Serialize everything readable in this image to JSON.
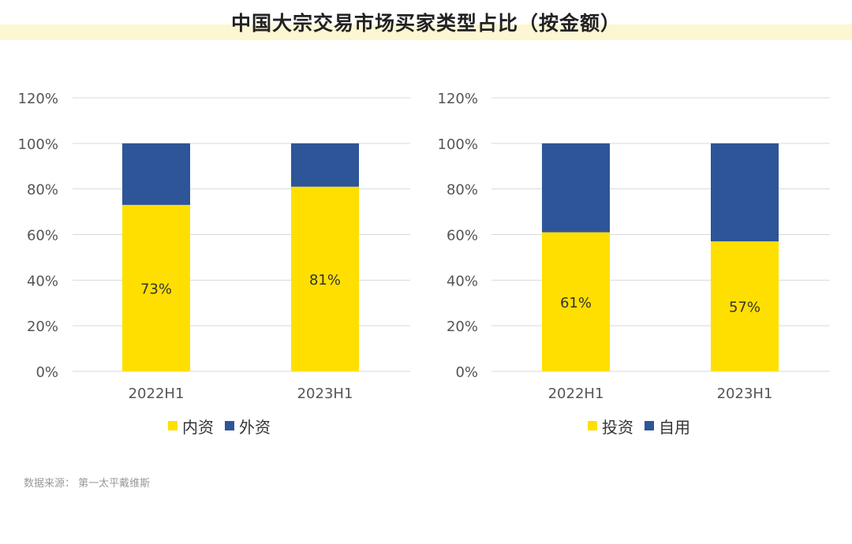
{
  "title": "中国大宗交易市场买家类型占比（按金额）",
  "source": "数据来源：  第一太平戴维斯",
  "colors": {
    "yellow": "#ffdf00",
    "blue": "#2e5597",
    "grid": "#d9d9d9",
    "axis_text": "#555555",
    "title_band": "#fdf6d2"
  },
  "chart_data": [
    {
      "type": "bar",
      "stacked": true,
      "categories": [
        "2022H1",
        "2023H1"
      ],
      "ylim": [
        0,
        120
      ],
      "yticks": [
        "0%",
        "20%",
        "40%",
        "60%",
        "80%",
        "100%",
        "120%"
      ],
      "series": [
        {
          "name": "内资",
          "color": "#ffdf00",
          "values": [
            73,
            81
          ],
          "labels": [
            "73%",
            "81%"
          ]
        },
        {
          "name": "外资",
          "color": "#2e5597",
          "values": [
            27,
            19
          ]
        }
      ],
      "legend_position": "bottom",
      "grid": true
    },
    {
      "type": "bar",
      "stacked": true,
      "categories": [
        "2022H1",
        "2023H1"
      ],
      "ylim": [
        0,
        120
      ],
      "yticks": [
        "0%",
        "20%",
        "40%",
        "60%",
        "80%",
        "100%",
        "120%"
      ],
      "series": [
        {
          "name": "投资",
          "color": "#ffdf00",
          "values": [
            61,
            57
          ],
          "labels": [
            "61%",
            "57%"
          ]
        },
        {
          "name": "自用",
          "color": "#2e5597",
          "values": [
            39,
            43
          ]
        }
      ],
      "legend_position": "bottom",
      "grid": true
    }
  ]
}
